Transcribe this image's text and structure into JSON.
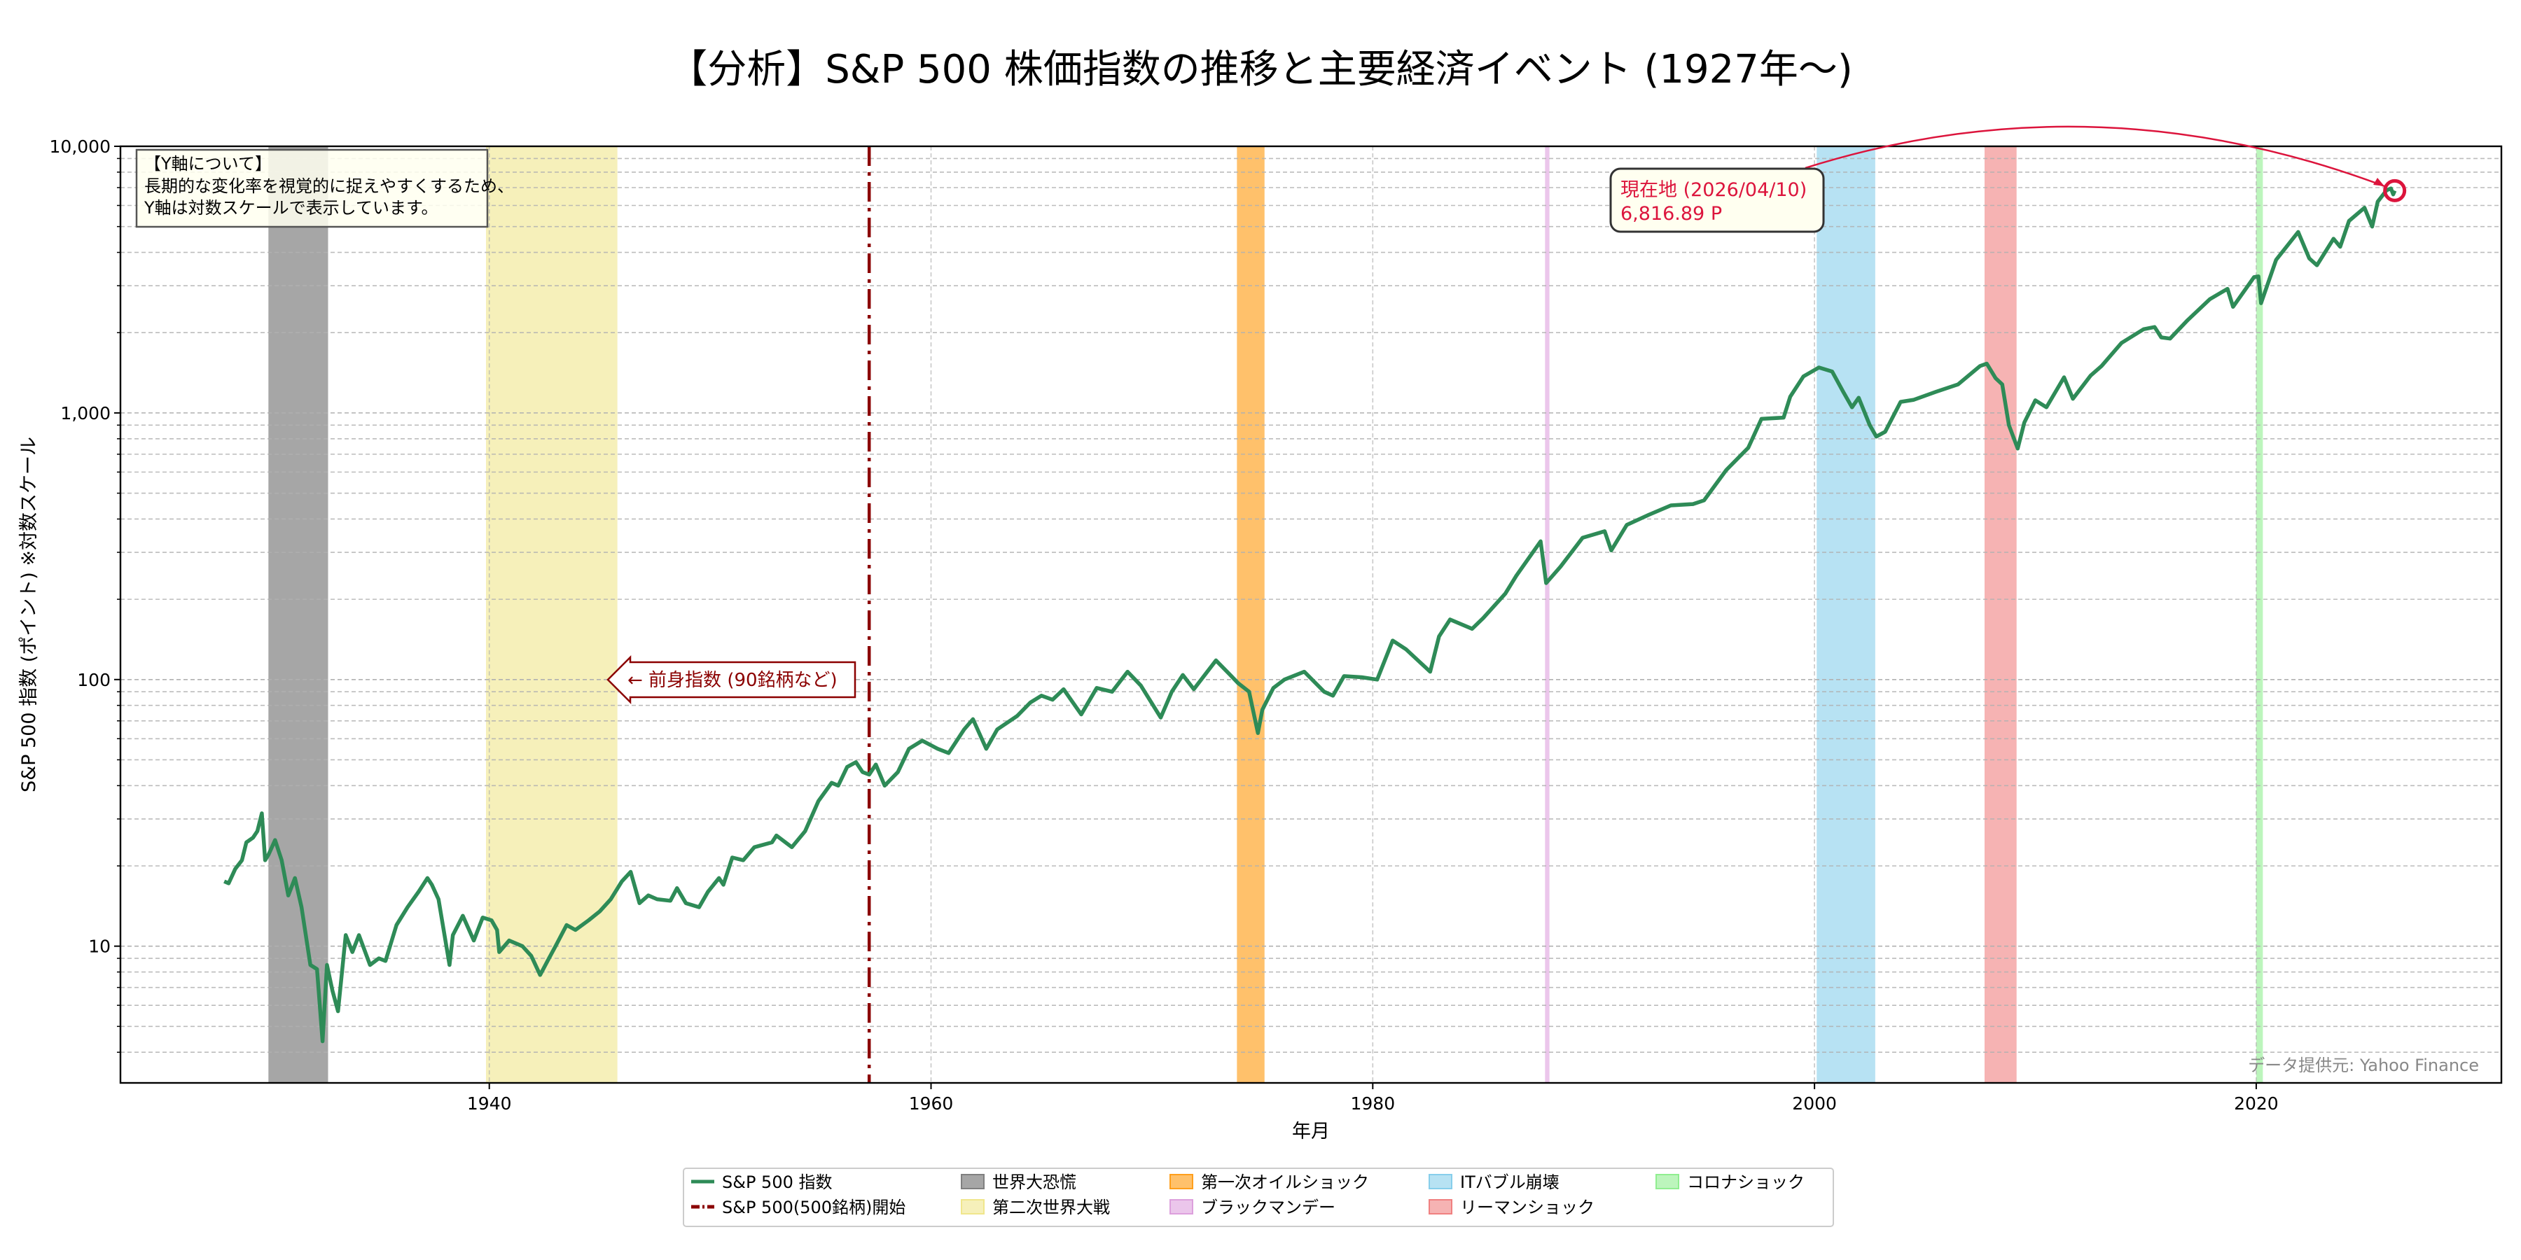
{
  "chart_data": {
    "type": "line",
    "title": "【分析】S&P 500 株価指数の推移と主要経済イベント (1927年〜)",
    "xlabel": "年月",
    "ylabel": "S&P 500 指数 (ポイント) ※対数スケール",
    "yscale": "log",
    "xlim": [
      1923.3,
      2031.1
    ],
    "ylim": [
      3.07,
      10000
    ],
    "grid": true,
    "x_ticks": [
      1940,
      1960,
      1980,
      2000,
      2020
    ],
    "x_tick_labels": [
      "1940",
      "1960",
      "1980",
      "2000",
      "2020"
    ],
    "y_ticks": [
      10,
      100,
      1000,
      10000
    ],
    "y_tick_labels": [
      "10",
      "100",
      "1,000",
      "10,000"
    ],
    "legend_position": "bottom-center",
    "series": [
      {
        "name": "S&P 500 指数",
        "color": "#2e8b57",
        "points": [
          [
            1928.0,
            17.5
          ],
          [
            1928.2,
            17.2
          ],
          [
            1928.5,
            19.5
          ],
          [
            1928.8,
            21
          ],
          [
            1929.0,
            24.5
          ],
          [
            1929.3,
            25.5
          ],
          [
            1929.5,
            27
          ],
          [
            1929.7,
            31.5
          ],
          [
            1929.85,
            21
          ],
          [
            1930.0,
            22
          ],
          [
            1930.3,
            25
          ],
          [
            1930.6,
            21
          ],
          [
            1930.9,
            15.5
          ],
          [
            1931.2,
            18
          ],
          [
            1931.5,
            14
          ],
          [
            1931.9,
            8.5
          ],
          [
            1932.2,
            8.2
          ],
          [
            1932.45,
            4.4
          ],
          [
            1932.65,
            8.5
          ],
          [
            1932.9,
            6.8
          ],
          [
            1933.15,
            5.7
          ],
          [
            1933.5,
            11
          ],
          [
            1933.8,
            9.5
          ],
          [
            1934.1,
            11
          ],
          [
            1934.6,
            8.5
          ],
          [
            1935.0,
            9
          ],
          [
            1935.3,
            8.8
          ],
          [
            1935.8,
            12
          ],
          [
            1936.3,
            14
          ],
          [
            1936.8,
            16
          ],
          [
            1937.2,
            18
          ],
          [
            1937.4,
            17
          ],
          [
            1937.7,
            15
          ],
          [
            1938.2,
            8.5
          ],
          [
            1938.35,
            11
          ],
          [
            1938.8,
            13
          ],
          [
            1939.3,
            10.5
          ],
          [
            1939.7,
            12.8
          ],
          [
            1940.1,
            12.5
          ],
          [
            1940.35,
            11.5
          ],
          [
            1940.45,
            9.5
          ],
          [
            1940.9,
            10.5
          ],
          [
            1941.5,
            10
          ],
          [
            1941.9,
            9.2
          ],
          [
            1942.3,
            7.8
          ],
          [
            1942.7,
            9
          ],
          [
            1943.0,
            10
          ],
          [
            1943.5,
            12
          ],
          [
            1943.9,
            11.5
          ],
          [
            1944.5,
            12.5
          ],
          [
            1945.0,
            13.5
          ],
          [
            1945.5,
            15
          ],
          [
            1946.0,
            17.5
          ],
          [
            1946.4,
            19
          ],
          [
            1946.8,
            14.5
          ],
          [
            1947.2,
            15.5
          ],
          [
            1947.6,
            15
          ],
          [
            1948.2,
            14.8
          ],
          [
            1948.5,
            16.5
          ],
          [
            1948.9,
            14.5
          ],
          [
            1949.5,
            14
          ],
          [
            1949.9,
            16
          ],
          [
            1950.4,
            18
          ],
          [
            1950.6,
            17
          ],
          [
            1951.0,
            21.5
          ],
          [
            1951.5,
            21
          ],
          [
            1952.0,
            23.5
          ],
          [
            1952.8,
            24.5
          ],
          [
            1953.0,
            26
          ],
          [
            1953.7,
            23.5
          ],
          [
            1954.3,
            27
          ],
          [
            1954.9,
            35
          ],
          [
            1955.5,
            41
          ],
          [
            1955.8,
            40
          ],
          [
            1956.2,
            47
          ],
          [
            1956.6,
            49
          ],
          [
            1956.9,
            45
          ],
          [
            1957.2,
            44
          ],
          [
            1957.5,
            48
          ],
          [
            1957.9,
            40
          ],
          [
            1958.5,
            45
          ],
          [
            1959.0,
            55
          ],
          [
            1959.6,
            59
          ],
          [
            1960.3,
            55
          ],
          [
            1960.8,
            53
          ],
          [
            1961.5,
            65
          ],
          [
            1961.9,
            71
          ],
          [
            1962.5,
            55
          ],
          [
            1963.0,
            65
          ],
          [
            1963.9,
            73
          ],
          [
            1964.5,
            82
          ],
          [
            1965.0,
            87
          ],
          [
            1965.5,
            84
          ],
          [
            1966.0,
            92
          ],
          [
            1966.8,
            74
          ],
          [
            1967.5,
            93
          ],
          [
            1968.2,
            90
          ],
          [
            1968.9,
            107
          ],
          [
            1969.5,
            95
          ],
          [
            1970.4,
            72
          ],
          [
            1970.9,
            90
          ],
          [
            1971.4,
            104
          ],
          [
            1971.9,
            92
          ],
          [
            1972.9,
            118
          ],
          [
            1973.5,
            105
          ],
          [
            1973.9,
            97
          ],
          [
            1974.4,
            90
          ],
          [
            1974.8,
            63
          ],
          [
            1975.0,
            77
          ],
          [
            1975.5,
            93
          ],
          [
            1976.0,
            100
          ],
          [
            1976.9,
            107
          ],
          [
            1977.8,
            90
          ],
          [
            1978.2,
            87
          ],
          [
            1978.7,
            103
          ],
          [
            1979.5,
            102
          ],
          [
            1980.2,
            100
          ],
          [
            1980.9,
            140
          ],
          [
            1981.5,
            130
          ],
          [
            1982.6,
            107
          ],
          [
            1983.0,
            145
          ],
          [
            1983.5,
            168
          ],
          [
            1984.5,
            155
          ],
          [
            1985.0,
            170
          ],
          [
            1986.0,
            210
          ],
          [
            1986.5,
            245
          ],
          [
            1987.6,
            330
          ],
          [
            1987.85,
            230
          ],
          [
            1988.5,
            265
          ],
          [
            1989.5,
            340
          ],
          [
            1990.5,
            360
          ],
          [
            1990.8,
            305
          ],
          [
            1991.5,
            380
          ],
          [
            1992.5,
            415
          ],
          [
            1993.5,
            450
          ],
          [
            1994.5,
            455
          ],
          [
            1995.0,
            470
          ],
          [
            1996.0,
            610
          ],
          [
            1997.0,
            740
          ],
          [
            1997.6,
            950
          ],
          [
            1998.6,
            960
          ],
          [
            1998.9,
            1150
          ],
          [
            1999.5,
            1370
          ],
          [
            2000.2,
            1480
          ],
          [
            2000.8,
            1430
          ],
          [
            2001.3,
            1200
          ],
          [
            2001.7,
            1050
          ],
          [
            2002.0,
            1140
          ],
          [
            2002.5,
            900
          ],
          [
            2002.8,
            815
          ],
          [
            2003.2,
            850
          ],
          [
            2003.9,
            1100
          ],
          [
            2004.5,
            1120
          ],
          [
            2005.5,
            1200
          ],
          [
            2006.5,
            1280
          ],
          [
            2007.5,
            1500
          ],
          [
            2007.8,
            1530
          ],
          [
            2008.2,
            1350
          ],
          [
            2008.5,
            1280
          ],
          [
            2008.8,
            900
          ],
          [
            2009.2,
            735
          ],
          [
            2009.5,
            920
          ],
          [
            2010.0,
            1115
          ],
          [
            2010.5,
            1050
          ],
          [
            2011.3,
            1360
          ],
          [
            2011.7,
            1130
          ],
          [
            2012.5,
            1380
          ],
          [
            2013.0,
            1500
          ],
          [
            2013.9,
            1830
          ],
          [
            2014.9,
            2060
          ],
          [
            2015.4,
            2100
          ],
          [
            2015.7,
            1920
          ],
          [
            2016.1,
            1900
          ],
          [
            2016.9,
            2230
          ],
          [
            2017.9,
            2670
          ],
          [
            2018.7,
            2920
          ],
          [
            2018.95,
            2500
          ],
          [
            2019.9,
            3230
          ],
          [
            2020.1,
            3250
          ],
          [
            2020.22,
            2580
          ],
          [
            2020.9,
            3750
          ],
          [
            2021.9,
            4770
          ],
          [
            2022.4,
            3800
          ],
          [
            2022.75,
            3580
          ],
          [
            2023.5,
            4500
          ],
          [
            2023.8,
            4200
          ],
          [
            2024.2,
            5250
          ],
          [
            2024.9,
            5880
          ],
          [
            2025.25,
            5000
          ],
          [
            2025.5,
            6200
          ],
          [
            2025.9,
            6840
          ],
          [
            2026.1,
            6950
          ],
          [
            2026.2,
            6600
          ],
          [
            2026.27,
            6816.89
          ]
        ]
      }
    ],
    "vline": {
      "name": "S&P 500(500銘柄)開始",
      "x": 1957.2,
      "color": "#8b0000",
      "style": "dash-dot"
    },
    "events": [
      {
        "name": "世界大恐慌",
        "start": 1930.0,
        "end": 1932.7,
        "color": "#808080",
        "opacity": 0.7
      },
      {
        "name": "第二次世界大戦",
        "start": 1939.85,
        "end": 1945.8,
        "color": "#f0e68c",
        "opacity": 0.6
      },
      {
        "name": "第一次オイルショック",
        "start": 1973.85,
        "end": 1975.1,
        "color": "#ff9f1c",
        "opacity": 0.65
      },
      {
        "name": "ブラックマンデー",
        "start": 1987.8,
        "end": 1988.0,
        "color": "#dda0dd",
        "opacity": 0.6
      },
      {
        "name": "ITバブル崩壊",
        "start": 2000.1,
        "end": 2002.75,
        "color": "#87ceeb",
        "opacity": 0.6
      },
      {
        "name": "リーマンショック",
        "start": 2007.7,
        "end": 2009.15,
        "color": "#f08080",
        "opacity": 0.6
      },
      {
        "name": "コロナショック",
        "start": 2020.0,
        "end": 2020.3,
        "color": "#90ee90",
        "opacity": 0.6
      }
    ],
    "annotations": {
      "yaxis_note": [
        "【Y軸について】",
        "長期的な変化率を視覚的に捉えやすくするため、",
        "Y軸は対数スケールで表示しています。"
      ],
      "predecessor": "← 前身指数 (90銘柄など)",
      "current_line1": "現在地 (2026/04/10)",
      "current_line2": "6,816.89 P",
      "current_point": [
        2026.27,
        6816.89
      ],
      "current_color": "#dc143c",
      "source": "データ提供元: Yahoo Finance"
    }
  }
}
